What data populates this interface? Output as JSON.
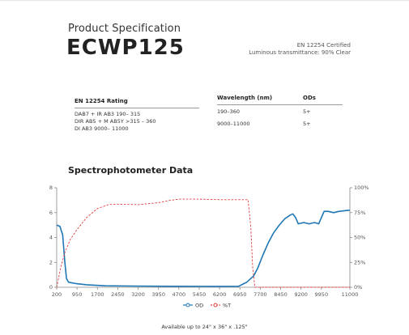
{
  "header": {
    "subtitle": "Product Specification",
    "product_name": "ECWP125",
    "cert_line1": "EN 12254 Certified",
    "cert_line2": "Luminous transmittance: 90% Clear"
  },
  "rating_table": {
    "heading": "EN 12254 Rating",
    "rows": [
      "DAB7 + IR AB3 190– 315",
      "DIR AB5 + M AB5Y >315 – 360",
      "DI AB3 9000– 11000"
    ]
  },
  "wavelength_table": {
    "col_wavelength": "Wavelength (nm)",
    "col_ods": "ODs",
    "rows": [
      {
        "wavelength": "190–360",
        "od": "5+"
      },
      {
        "wavelength": "9000–11000",
        "od": "5+"
      }
    ]
  },
  "chart_title": "Spectrophotometer Data",
  "footer": "Available up to 24\" x 36\" x .125\"",
  "chart_data": {
    "type": "line",
    "x_ticks": [
      200,
      950,
      1700,
      2450,
      3200,
      3950,
      4700,
      5450,
      6200,
      6950,
      7700,
      8450,
      9200,
      9950,
      11000
    ],
    "y_left_ticks": [
      "0",
      "2",
      "4",
      "6",
      "8"
    ],
    "y_right_ticks": [
      "0%",
      "25%",
      "50%",
      "75%",
      "100%"
    ],
    "xlim": [
      200,
      11000
    ],
    "ylim_left": [
      0,
      8
    ],
    "ylim_right": [
      0,
      100
    ],
    "series": [
      {
        "name": "OD",
        "color": "#1f77b4",
        "axis": "left",
        "style": "solid",
        "points": [
          [
            200,
            5
          ],
          [
            320,
            4.9
          ],
          [
            420,
            4.2
          ],
          [
            500,
            2
          ],
          [
            560,
            0.7
          ],
          [
            640,
            0.4
          ],
          [
            900,
            0.3
          ],
          [
            1300,
            0.2
          ],
          [
            2000,
            0.12
          ],
          [
            3000,
            0.1
          ],
          [
            4500,
            0.08
          ],
          [
            6000,
            0.07
          ],
          [
            6900,
            0.08
          ],
          [
            7100,
            0.3
          ],
          [
            7200,
            0.4
          ],
          [
            7350,
            0.7
          ],
          [
            7450,
            0.9
          ],
          [
            7600,
            1.5
          ],
          [
            7800,
            2.6
          ],
          [
            8000,
            3.6
          ],
          [
            8200,
            4.4
          ],
          [
            8400,
            5.0
          ],
          [
            8600,
            5.5
          ],
          [
            8800,
            5.8
          ],
          [
            8900,
            5.9
          ],
          [
            9000,
            5.6
          ],
          [
            9100,
            5.1
          ],
          [
            9300,
            5.2
          ],
          [
            9500,
            5.1
          ],
          [
            9700,
            5.2
          ],
          [
            9850,
            5.1
          ],
          [
            9950,
            5.6
          ],
          [
            10050,
            6.1
          ],
          [
            10200,
            6.1
          ],
          [
            10400,
            6.0
          ],
          [
            10600,
            6.1
          ],
          [
            10800,
            6.15
          ],
          [
            11000,
            6.2
          ]
        ]
      },
      {
        "name": "%T",
        "color": "#e03c3c",
        "axis": "right",
        "style": "dashed",
        "points": [
          [
            200,
            0
          ],
          [
            350,
            20
          ],
          [
            500,
            35
          ],
          [
            700,
            48
          ],
          [
            950,
            58
          ],
          [
            1300,
            70
          ],
          [
            1700,
            79
          ],
          [
            2100,
            83
          ],
          [
            2450,
            83.5
          ],
          [
            3200,
            83
          ],
          [
            3950,
            85
          ],
          [
            4300,
            87
          ],
          [
            4700,
            88.5
          ],
          [
            5450,
            88.5
          ],
          [
            6200,
            88
          ],
          [
            6950,
            88
          ],
          [
            7250,
            88
          ],
          [
            7350,
            60
          ],
          [
            7420,
            20
          ],
          [
            7500,
            0
          ],
          [
            11000,
            0
          ]
        ]
      }
    ],
    "legend_position": "bottom-center",
    "grid": false
  }
}
